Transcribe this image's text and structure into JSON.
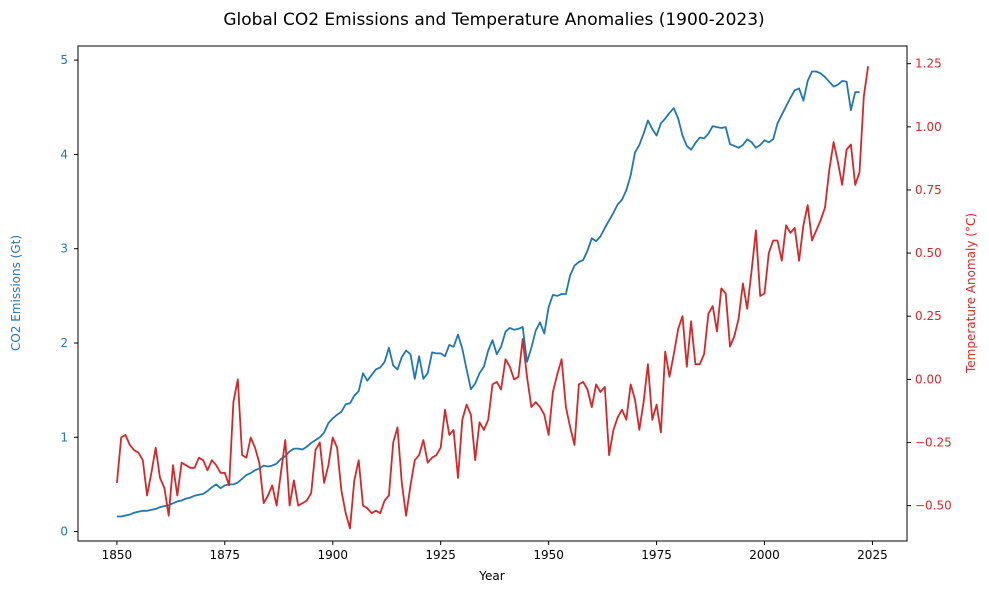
{
  "chart_data": {
    "type": "line",
    "title": "Global CO2 Emissions and Temperature Anomalies (1900-2023)",
    "xlabel": "Year",
    "ylabel_left": "CO2 Emissions (Gt)",
    "ylabel_right": "Temperature Anomaly (°C)",
    "xlim": [
      1841,
      2033
    ],
    "ylim_left": [
      -0.1,
      5.15
    ],
    "ylim_right": [
      -0.64,
      1.32
    ],
    "x_ticks": [
      1850,
      1875,
      1900,
      1925,
      1950,
      1975,
      2000,
      2025
    ],
    "y_ticks_left": [
      0,
      1,
      2,
      3,
      4,
      5
    ],
    "y_ticks_right": [
      "−0.50",
      "−0.25",
      "0.00",
      "0.25",
      "0.50",
      "0.75",
      "1.00",
      "1.25"
    ],
    "y_ticks_right_values": [
      -0.5,
      -0.25,
      0,
      0.25,
      0.5,
      0.75,
      1.0,
      1.25
    ],
    "grid": false,
    "legend": "none",
    "series": [
      {
        "name": "CO2 Emissions (Gt)",
        "axis": "left",
        "color": "#1f77b4",
        "start_year": 1850,
        "values": [
          0.16,
          0.16,
          0.17,
          0.18,
          0.2,
          0.21,
          0.22,
          0.22,
          0.23,
          0.24,
          0.26,
          0.27,
          0.28,
          0.3,
          0.32,
          0.33,
          0.35,
          0.36,
          0.38,
          0.39,
          0.4,
          0.43,
          0.47,
          0.5,
          0.46,
          0.49,
          0.5,
          0.5,
          0.52,
          0.56,
          0.6,
          0.62,
          0.65,
          0.67,
          0.7,
          0.69,
          0.7,
          0.72,
          0.77,
          0.8,
          0.85,
          0.88,
          0.88,
          0.87,
          0.9,
          0.94,
          0.97,
          1.0,
          1.05,
          1.15,
          1.2,
          1.24,
          1.27,
          1.35,
          1.36,
          1.44,
          1.49,
          1.68,
          1.6,
          1.66,
          1.72,
          1.74,
          1.8,
          1.95,
          1.76,
          1.72,
          1.85,
          1.92,
          1.88,
          1.62,
          1.86,
          1.62,
          1.68,
          1.9,
          1.89,
          1.89,
          1.86,
          1.98,
          1.96,
          2.09,
          1.94,
          1.72,
          1.51,
          1.57,
          1.68,
          1.75,
          1.92,
          2.03,
          1.88,
          1.96,
          2.12,
          2.16,
          2.14,
          2.15,
          2.17,
          1.8,
          1.95,
          2.13,
          2.22,
          2.1,
          2.38,
          2.51,
          2.5,
          2.52,
          2.52,
          2.72,
          2.82,
          2.86,
          2.88,
          2.98,
          3.11,
          3.08,
          3.13,
          3.22,
          3.3,
          3.38,
          3.47,
          3.52,
          3.62,
          3.78,
          4.02,
          4.1,
          4.22,
          4.36,
          4.27,
          4.2,
          4.33,
          4.38,
          4.44,
          4.49,
          4.38,
          4.2,
          4.09,
          4.05,
          4.12,
          4.18,
          4.17,
          4.22,
          4.3,
          4.29,
          4.28,
          4.29,
          4.11,
          4.09,
          4.07,
          4.1,
          4.16,
          4.13,
          4.07,
          4.1,
          4.15,
          4.13,
          4.16,
          4.33,
          4.42,
          4.51,
          4.6,
          4.68,
          4.7,
          4.57,
          4.78,
          4.88,
          4.88,
          4.86,
          4.82,
          4.77,
          4.72,
          4.74,
          4.78,
          4.77,
          4.47,
          4.66,
          4.66
        ]
      },
      {
        "name": "Temperature Anomaly (°C)",
        "axis": "right",
        "color": "#d62728",
        "start_year": 1850,
        "values": [
          -0.41,
          -0.23,
          -0.22,
          -0.26,
          -0.28,
          -0.29,
          -0.32,
          -0.46,
          -0.37,
          -0.27,
          -0.39,
          -0.43,
          -0.54,
          -0.34,
          -0.46,
          -0.33,
          -0.34,
          -0.35,
          -0.35,
          -0.31,
          -0.32,
          -0.36,
          -0.32,
          -0.34,
          -0.37,
          -0.37,
          -0.42,
          -0.09,
          0.0,
          -0.3,
          -0.31,
          -0.23,
          -0.27,
          -0.33,
          -0.49,
          -0.46,
          -0.42,
          -0.5,
          -0.37,
          -0.24,
          -0.5,
          -0.4,
          -0.5,
          -0.49,
          -0.48,
          -0.45,
          -0.28,
          -0.25,
          -0.41,
          -0.34,
          -0.23,
          -0.27,
          -0.44,
          -0.53,
          -0.59,
          -0.4,
          -0.32,
          -0.5,
          -0.51,
          -0.53,
          -0.52,
          -0.53,
          -0.48,
          -0.46,
          -0.25,
          -0.19,
          -0.41,
          -0.54,
          -0.42,
          -0.32,
          -0.3,
          -0.24,
          -0.33,
          -0.31,
          -0.3,
          -0.27,
          -0.12,
          -0.22,
          -0.2,
          -0.39,
          -0.16,
          -0.1,
          -0.14,
          -0.32,
          -0.17,
          -0.2,
          -0.16,
          -0.02,
          -0.01,
          -0.04,
          0.08,
          0.05,
          0.0,
          0.01,
          0.16,
          0.01,
          -0.11,
          -0.09,
          -0.11,
          -0.14,
          -0.22,
          -0.05,
          0.02,
          0.08,
          -0.11,
          -0.19,
          -0.26,
          -0.02,
          -0.01,
          -0.04,
          -0.11,
          -0.02,
          -0.05,
          -0.03,
          -0.3,
          -0.2,
          -0.15,
          -0.12,
          -0.16,
          -0.02,
          -0.08,
          -0.2,
          -0.09,
          0.06,
          -0.16,
          -0.1,
          -0.21,
          0.11,
          0.01,
          0.1,
          0.2,
          0.25,
          0.05,
          0.23,
          0.06,
          0.06,
          0.1,
          0.26,
          0.29,
          0.19,
          0.36,
          0.34,
          0.13,
          0.17,
          0.24,
          0.38,
          0.28,
          0.43,
          0.59,
          0.33,
          0.34,
          0.5,
          0.55,
          0.55,
          0.47,
          0.61,
          0.58,
          0.6,
          0.47,
          0.61,
          0.69,
          0.55,
          0.59,
          0.63,
          0.68,
          0.83,
          0.94,
          0.86,
          0.77,
          0.91,
          0.93,
          0.77,
          0.82,
          1.12,
          1.24
        ]
      }
    ]
  }
}
